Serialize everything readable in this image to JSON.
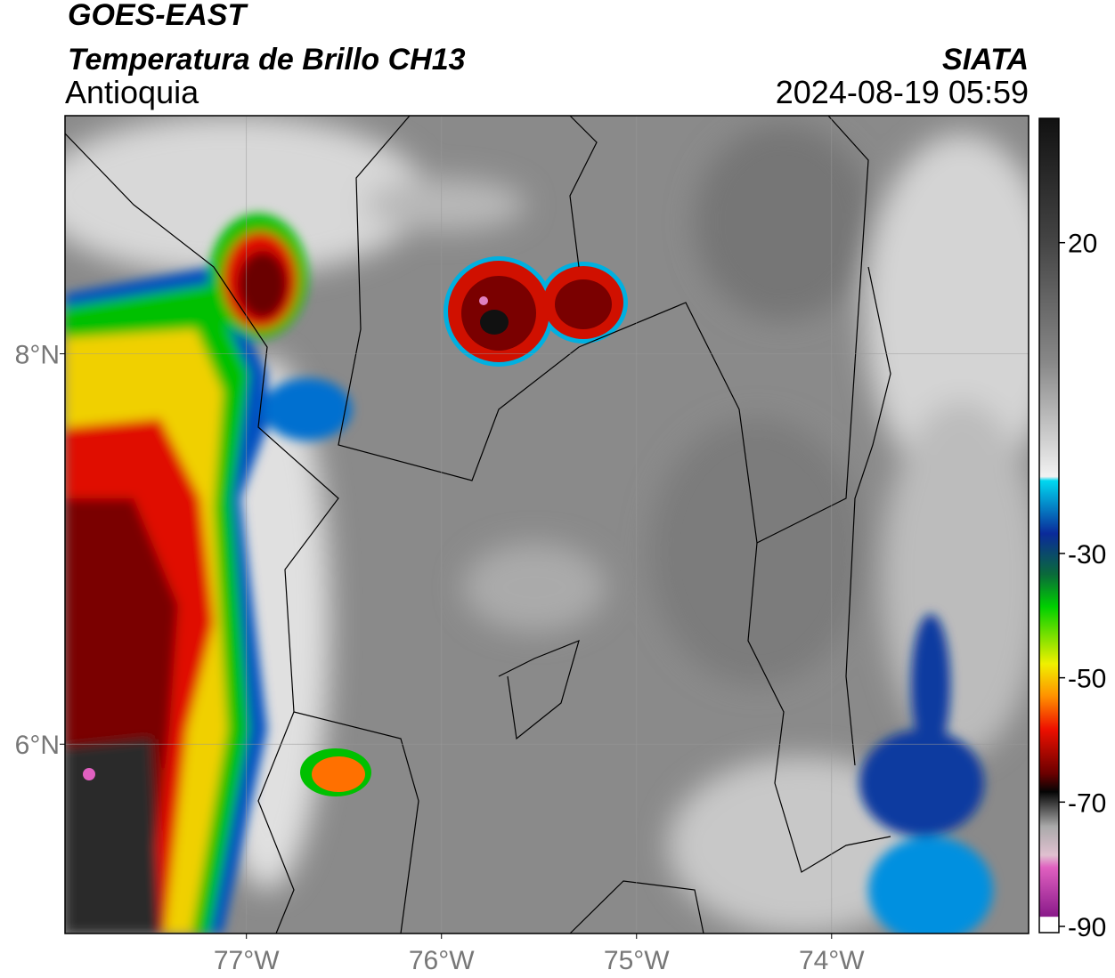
{
  "header": {
    "title": "GOES-EAST",
    "subtitle": "Temperatura de Brillo CH13",
    "region": "Antioquia",
    "source": "SIATA",
    "datetime": "2024-08-19 05:59"
  },
  "map": {
    "lon_range": [
      -77.93,
      -72.99
    ],
    "lat_range": [
      5.03,
      9.22
    ],
    "lat_ticks": [
      {
        "value": 8,
        "label": "8°N"
      },
      {
        "value": 6,
        "label": "6°N"
      }
    ],
    "lon_ticks": [
      {
        "value": -77,
        "label": "77°W"
      },
      {
        "value": -76,
        "label": "76°W"
      },
      {
        "value": -75,
        "label": "75°W"
      },
      {
        "value": -74,
        "label": "74°W"
      }
    ]
  },
  "colorbar": {
    "lim": [
      -91,
      40
    ],
    "ticks": [
      20,
      -30,
      -50,
      -70,
      -90
    ]
  }
}
